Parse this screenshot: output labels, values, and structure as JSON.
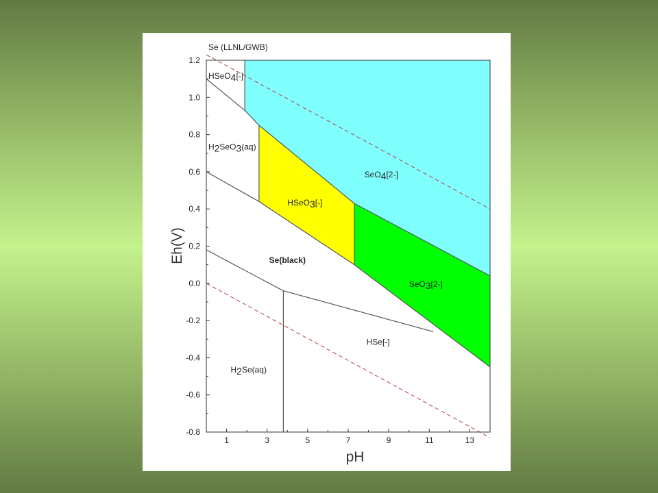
{
  "chart_data": {
    "type": "area",
    "title": "Se (LLNL/GWB)",
    "xlabel": "pH",
    "ylabel": "Eh(V)",
    "xlim": [
      0,
      14
    ],
    "ylim": [
      -0.8,
      1.2
    ],
    "xticks": [
      1,
      3,
      5,
      7,
      9,
      11,
      13
    ],
    "yticks": [
      1.2,
      1.0,
      0.8,
      0.6,
      0.4,
      0.2,
      0.0,
      -0.2,
      -0.4,
      -0.6,
      -0.8
    ],
    "ytick_labels": [
      "1.2",
      "1.0",
      "0.8",
      "0.6",
      "0.4",
      "0.2",
      "0.0",
      "-0.2",
      "-0.4",
      "-0.6",
      "-0.8"
    ],
    "colors": {
      "SeO4[2-]": "#80ffff",
      "HSeO3[-]": "#ffff00",
      "SeO3[2-]": "#00ff00",
      "line": "#555555",
      "water_line": "#b04040"
    },
    "regions": [
      {
        "name": "SeO4[2-]",
        "fill": "SeO4[2-]",
        "points": [
          [
            1.9,
            1.2
          ],
          [
            14,
            1.2
          ],
          [
            14,
            0.04
          ],
          [
            7.3,
            0.43
          ],
          [
            2.6,
            0.85
          ],
          [
            1.9,
            0.93
          ]
        ]
      },
      {
        "name": "HSeO3[-]",
        "fill": "HSeO3[-]",
        "points": [
          [
            2.6,
            0.85
          ],
          [
            7.3,
            0.43
          ],
          [
            7.3,
            0.1
          ],
          [
            2.6,
            0.44
          ]
        ]
      },
      {
        "name": "SeO3[2-]",
        "fill": "SeO3[2-]",
        "points": [
          [
            7.3,
            0.43
          ],
          [
            14,
            0.04
          ],
          [
            14,
            -0.45
          ],
          [
            7.3,
            0.1
          ]
        ]
      }
    ],
    "boundaries": [
      [
        [
          0,
          1.1
        ],
        [
          1.9,
          0.93
        ],
        [
          2.6,
          0.85
        ],
        [
          7.3,
          0.43
        ],
        [
          14,
          0.04
        ]
      ],
      [
        [
          1.9,
          1.2
        ],
        [
          1.9,
          0.93
        ]
      ],
      [
        [
          2.6,
          0.85
        ],
        [
          2.6,
          0.44
        ]
      ],
      [
        [
          7.3,
          0.43
        ],
        [
          7.3,
          0.1
        ]
      ],
      [
        [
          0,
          0.6
        ],
        [
          2.6,
          0.44
        ],
        [
          7.3,
          0.1
        ],
        [
          14,
          -0.45
        ]
      ],
      [
        [
          0,
          0.18
        ],
        [
          3.8,
          -0.04
        ],
        [
          11.2,
          -0.26
        ]
      ],
      [
        [
          3.8,
          -0.04
        ],
        [
          3.8,
          -0.8
        ]
      ]
    ],
    "water_lines": [
      [
        [
          0,
          1.23
        ],
        [
          14,
          0.4
        ]
      ],
      [
        [
          0,
          0.0
        ],
        [
          14,
          -0.83
        ]
      ]
    ],
    "labels": [
      {
        "parts": [
          {
            "t": "HSeO"
          },
          {
            "t": "4",
            "sub": true
          },
          {
            "t": "[-]"
          }
        ],
        "x": 0.1,
        "y": 1.1
      },
      {
        "parts": [
          {
            "t": "H"
          },
          {
            "t": "2",
            "sub": true
          },
          {
            "t": "SeO"
          },
          {
            "t": "3",
            "sub": true
          },
          {
            "t": "(aq)"
          }
        ],
        "x": 0.1,
        "y": 0.72
      },
      {
        "parts": [
          {
            "t": "SeO"
          },
          {
            "t": "4",
            "sub": true
          },
          {
            "t": "[2-]"
          }
        ],
        "x": 7.8,
        "y": 0.57
      },
      {
        "parts": [
          {
            "t": "HSeO"
          },
          {
            "t": "3",
            "sub": true
          },
          {
            "t": "[-]"
          }
        ],
        "x": 4.0,
        "y": 0.42
      },
      {
        "parts": [
          {
            "t": "Se(black)"
          }
        ],
        "x": 3.1,
        "y": 0.11,
        "bold": true
      },
      {
        "parts": [
          {
            "t": "SeO"
          },
          {
            "t": "3",
            "sub": true
          },
          {
            "t": "[2-]"
          }
        ],
        "x": 10.0,
        "y": -0.02
      },
      {
        "parts": [
          {
            "t": "HSe[-]"
          }
        ],
        "x": 7.9,
        "y": -0.33
      },
      {
        "parts": [
          {
            "t": "H"
          },
          {
            "t": "2",
            "sub": true
          },
          {
            "t": "Se(aq)"
          }
        ],
        "x": 1.2,
        "y": -0.48
      }
    ]
  }
}
